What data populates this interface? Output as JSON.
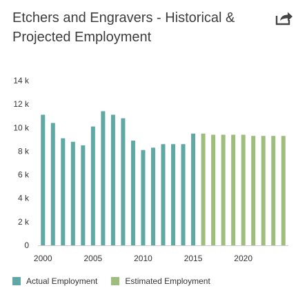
{
  "title": "Etchers and Engravers - Historical & Projected Employment",
  "share_icon": "share-icon",
  "colors": {
    "actual": "#5fa8a3",
    "estimated": "#9fbd7d",
    "axis": "#cccccc",
    "text": "#333333",
    "title": "#3c3c3c"
  },
  "chart_data": {
    "type": "bar",
    "title": "Etchers and Engravers - Historical & Projected Employment",
    "xlabel": "",
    "ylabel": "",
    "ylim": [
      0,
      14000
    ],
    "yticks": [
      0,
      2000,
      4000,
      6000,
      8000,
      10000,
      12000,
      14000
    ],
    "ytick_labels": [
      "0",
      "2 k",
      "4 k",
      "6 k",
      "8 k",
      "10 k",
      "12 k",
      "14 k"
    ],
    "xticks": [
      2000,
      2005,
      2010,
      2015,
      2020
    ],
    "grid": false,
    "legend_position": "bottom-left",
    "series": [
      {
        "name": "Actual Employment",
        "x": [
          2000,
          2001,
          2002,
          2003,
          2004,
          2005,
          2006,
          2007,
          2008,
          2009,
          2010,
          2011,
          2012,
          2013,
          2014,
          2015
        ],
        "values": [
          11100,
          10400,
          9100,
          8800,
          8500,
          10100,
          11400,
          11100,
          10800,
          8900,
          8100,
          8300,
          8600,
          8600,
          8600,
          9500
        ]
      },
      {
        "name": "Estimated Employment",
        "x": [
          2016,
          2017,
          2018,
          2019,
          2020,
          2021,
          2022,
          2023,
          2024
        ],
        "values": [
          9500,
          9400,
          9400,
          9400,
          9400,
          9300,
          9300,
          9300,
          9300
        ]
      }
    ]
  }
}
